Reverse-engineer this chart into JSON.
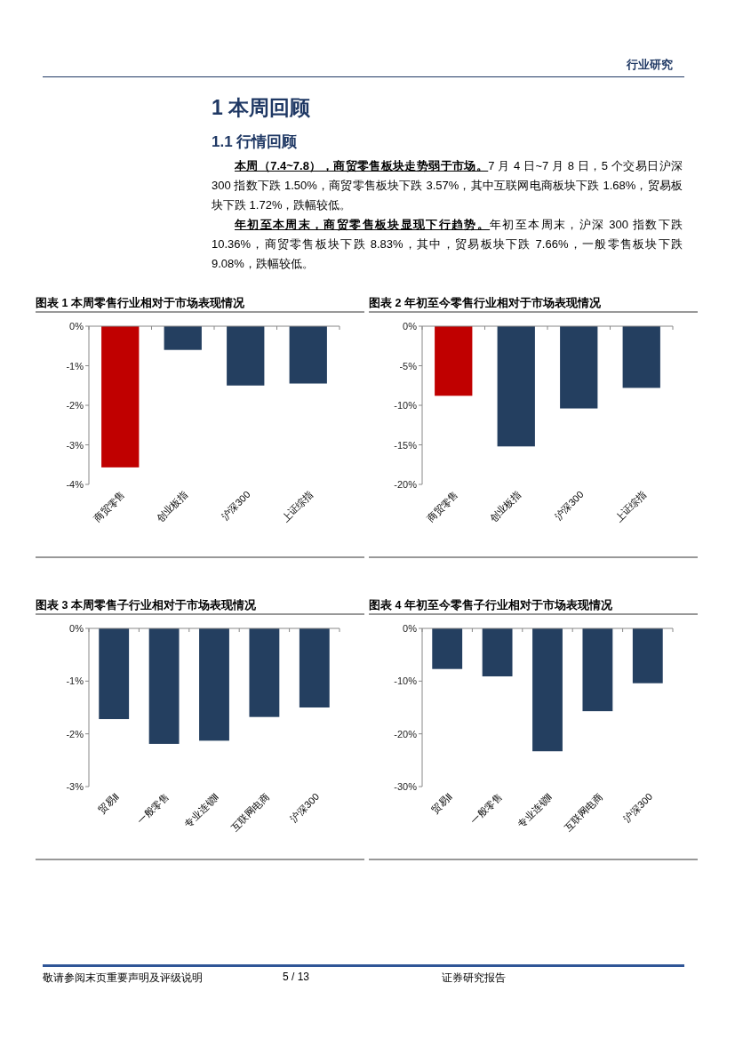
{
  "chart_data": [
    {
      "type": "other",
      "title": "1 本周回顾",
      "subtitle": "1.1 行情回顾",
      "annotations": [
        "行业研究",
        "本周（7.4~7.8），商贸零售板块走势弱于市场。",
        "7 月 4 日~7 月 8 日，5 个交易日沪深 300 指数下跌 1.50%，商贸零售板块下跌 3.57%，其中互联网电商板块下跌 1.68%，贸易板块下跌 1.72%，跌幅较低。",
        "年初至本周末，商贸零售板块显现下行趋势。",
        "年初至本周末，沪深 300 指数下跌 10.36%，商贸零售板块下跌 8.83%，其中，贸易板块下跌 7.66%，一般零售板块下跌 9.08%，跌幅较低。",
        "敬请参阅末页重要声明及评级说明",
        "5 / 13",
        "证券研究报告"
      ]
    },
    {
      "type": "bar",
      "title": "图表 1 本周零售行业相对于市场表现情况",
      "categories": [
        "商贸零售",
        "创业板指",
        "沪深300",
        "上证综指"
      ],
      "values": [
        -3.57,
        -0.6,
        -1.5,
        -1.45
      ],
      "colors": [
        "#c00000",
        "#243f60",
        "#243f60",
        "#243f60"
      ],
      "ylim": [
        -4,
        0
      ],
      "yticks": [
        {
          "value": 0,
          "label": "0%"
        },
        {
          "value": -1,
          "label": "-1%"
        },
        {
          "value": -2,
          "label": "-2%"
        },
        {
          "value": -3,
          "label": "-3%"
        },
        {
          "value": -4,
          "label": "-4%"
        }
      ],
      "grid": false
    },
    {
      "type": "bar",
      "title": "图表 2 年初至今零售行业相对于市场表现情况",
      "categories": [
        "商贸零售",
        "创业板指",
        "沪深300",
        "上证综指"
      ],
      "values": [
        -8.8,
        -15.2,
        -10.4,
        -7.8
      ],
      "colors": [
        "#c00000",
        "#243f60",
        "#243f60",
        "#243f60"
      ],
      "ylim": [
        -20,
        0
      ],
      "yticks": [
        {
          "value": 0,
          "label": "0%"
        },
        {
          "value": -5,
          "label": "-5%"
        },
        {
          "value": -10,
          "label": "-10%"
        },
        {
          "value": -15,
          "label": "-15%"
        },
        {
          "value": -20,
          "label": "-20%"
        }
      ],
      "grid": false
    },
    {
      "type": "bar",
      "title": "图表 3 本周零售子行业相对于市场表现情况",
      "categories": [
        "贸易Ⅱ",
        "一般零售",
        "专业连锁Ⅱ",
        "互联网电商",
        "沪深300"
      ],
      "values": [
        -1.72,
        -2.19,
        -2.13,
        -1.68,
        -1.5
      ],
      "colors": [
        "#243f60",
        "#243f60",
        "#243f60",
        "#243f60",
        "#243f60"
      ],
      "ylim": [
        -3,
        0
      ],
      "yticks": [
        {
          "value": 0,
          "label": "0%"
        },
        {
          "value": -1,
          "label": "-1%"
        },
        {
          "value": -2,
          "label": "-2%"
        },
        {
          "value": -3,
          "label": "-3%"
        }
      ],
      "grid": false
    },
    {
      "type": "bar",
      "title": "图表 4 年初至今零售子行业相对于市场表现情况",
      "categories": [
        "贸易Ⅱ",
        "一般零售",
        "专业连锁Ⅱ",
        "互联网电商",
        "沪深300"
      ],
      "values": [
        -7.7,
        -9.1,
        -23.3,
        -15.7,
        -10.4
      ],
      "colors": [
        "#243f60",
        "#243f60",
        "#243f60",
        "#243f60",
        "#243f60"
      ],
      "ylim": [
        -30,
        0
      ],
      "yticks": [
        {
          "value": 0,
          "label": "0%"
        },
        {
          "value": -10,
          "label": "-10%"
        },
        {
          "value": -20,
          "label": "-20%"
        },
        {
          "value": -30,
          "label": "-30%"
        }
      ],
      "grid": false
    }
  ]
}
